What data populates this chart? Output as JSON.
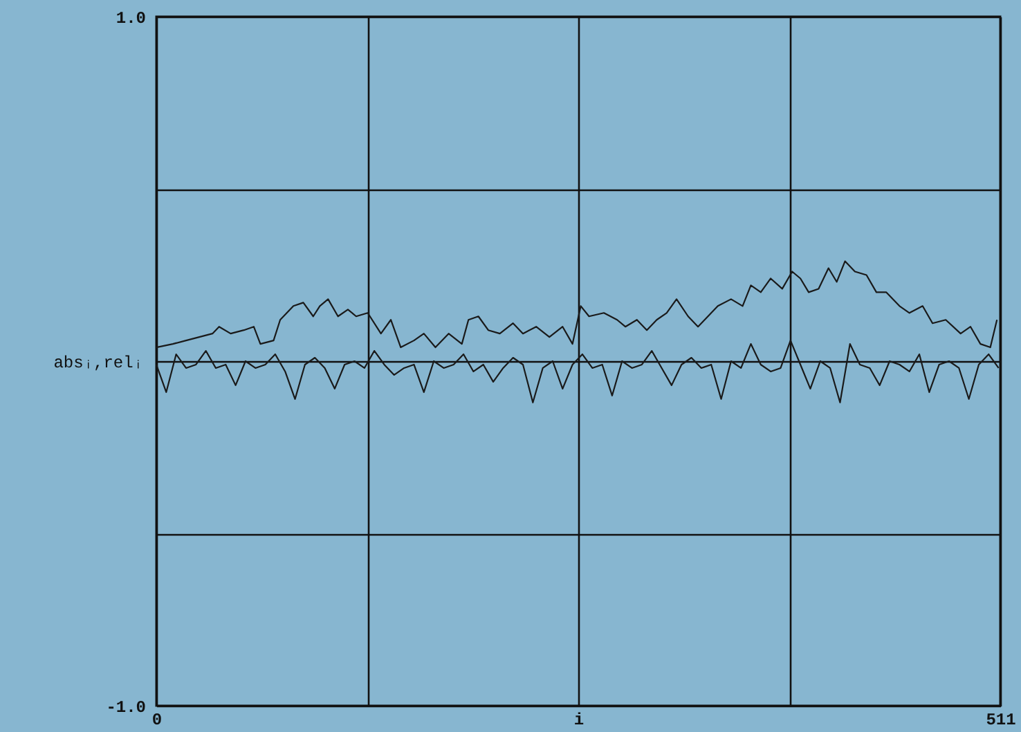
{
  "chart_data": {
    "type": "line",
    "xlabel": "i",
    "ylabel": "absᵢ,relᵢ",
    "xlim": [
      0,
      511
    ],
    "ylim": [
      -1.0,
      1.0
    ],
    "xticks": [
      0,
      {
        "value": 127.75,
        "label": null
      },
      {
        "value": 255.5,
        "label": null
      },
      {
        "value": 383.25,
        "label": null
      },
      511
    ],
    "yticks": [
      {
        "value": -1.0,
        "label": "-1.0"
      },
      {
        "value": -0.5,
        "label": null
      },
      {
        "value": 0,
        "label": null
      },
      {
        "value": 0.5,
        "label": null
      },
      {
        "value": 1.0,
        "label": "1.0"
      }
    ],
    "grid": true,
    "line_style": "solid",
    "series": [
      {
        "color": "#1a1a1a",
        "x": [
          0,
          10,
          18,
          26,
          34,
          38,
          45,
          53,
          59,
          63,
          71,
          75,
          79,
          83,
          89,
          95,
          99,
          104,
          110,
          116,
          121,
          128,
          136,
          142,
          148,
          156,
          162,
          169,
          177,
          185,
          189,
          195,
          201,
          208,
          216,
          222,
          230,
          238,
          246,
          252,
          257,
          262,
          271,
          279,
          284,
          291,
          297,
          303,
          309,
          315,
          322,
          328,
          332,
          340,
          348,
          355,
          360,
          366,
          372,
          379,
          385,
          390,
          395,
          401,
          407,
          412,
          417,
          423,
          430,
          436,
          442,
          450,
          456,
          464,
          470,
          478,
          487,
          493,
          499,
          505,
          509
        ],
        "values": [
          0.04,
          0.05,
          0.06,
          0.07,
          0.08,
          0.1,
          0.08,
          0.09,
          0.1,
          0.05,
          0.06,
          0.12,
          0.14,
          0.16,
          0.17,
          0.13,
          0.16,
          0.18,
          0.13,
          0.15,
          0.13,
          0.14,
          0.08,
          0.12,
          0.04,
          0.06,
          0.08,
          0.04,
          0.08,
          0.05,
          0.12,
          0.13,
          0.09,
          0.08,
          0.11,
          0.08,
          0.1,
          0.07,
          0.1,
          0.05,
          0.16,
          0.13,
          0.14,
          0.12,
          0.1,
          0.12,
          0.09,
          0.12,
          0.14,
          0.18,
          0.13,
          0.1,
          0.12,
          0.16,
          0.18,
          0.16,
          0.22,
          0.2,
          0.24,
          0.21,
          0.26,
          0.24,
          0.2,
          0.21,
          0.27,
          0.23,
          0.29,
          0.26,
          0.25,
          0.2,
          0.2,
          0.16,
          0.14,
          0.16,
          0.11,
          0.12,
          0.08,
          0.1,
          0.05,
          0.04,
          0.12
        ]
      },
      {
        "color": "#1a1a1a",
        "x": [
          0,
          6,
          12,
          18,
          24,
          30,
          36,
          42,
          48,
          54,
          60,
          66,
          72,
          78,
          84,
          90,
          96,
          102,
          108,
          114,
          120,
          126,
          132,
          138,
          144,
          150,
          156,
          162,
          168,
          174,
          180,
          186,
          192,
          198,
          204,
          210,
          216,
          222,
          228,
          234,
          240,
          246,
          252,
          258,
          264,
          270,
          276,
          282,
          288,
          294,
          300,
          306,
          312,
          318,
          324,
          330,
          336,
          342,
          348,
          354,
          360,
          366,
          372,
          378,
          384,
          390,
          396,
          402,
          408,
          414,
          420,
          426,
          432,
          438,
          444,
          450,
          456,
          462,
          468,
          474,
          480,
          486,
          492,
          498,
          504,
          510
        ],
        "values": [
          -0.01,
          -0.09,
          0.02,
          -0.02,
          -0.01,
          0.03,
          -0.02,
          -0.01,
          -0.07,
          0.0,
          -0.02,
          -0.01,
          0.02,
          -0.03,
          -0.11,
          -0.01,
          0.01,
          -0.02,
          -0.08,
          -0.01,
          0.0,
          -0.02,
          0.03,
          -0.01,
          -0.04,
          -0.02,
          -0.01,
          -0.09,
          0.0,
          -0.02,
          -0.01,
          0.02,
          -0.03,
          -0.01,
          -0.06,
          -0.02,
          0.01,
          -0.01,
          -0.12,
          -0.02,
          0.0,
          -0.08,
          -0.01,
          0.02,
          -0.02,
          -0.01,
          -0.1,
          0.0,
          -0.02,
          -0.01,
          0.03,
          -0.02,
          -0.07,
          -0.01,
          0.01,
          -0.02,
          -0.01,
          -0.11,
          0.0,
          -0.02,
          0.05,
          -0.01,
          -0.03,
          -0.02,
          0.06,
          -0.01,
          -0.08,
          0.0,
          -0.02,
          -0.12,
          0.05,
          -0.01,
          -0.02,
          -0.07,
          0.0,
          -0.01,
          -0.03,
          0.02,
          -0.09,
          -0.01,
          0.0,
          -0.02,
          -0.11,
          -0.01,
          0.02,
          -0.02
        ]
      }
    ]
  }
}
